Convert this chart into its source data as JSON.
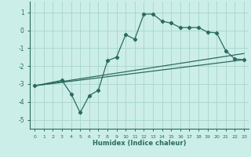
{
  "xlabel": "Humidex (Indice chaleur)",
  "bg_color": "#cceee8",
  "grid_color": "#aad8d0",
  "line_color": "#2a6b60",
  "xlim": [
    -0.5,
    23.5
  ],
  "ylim": [
    -5.5,
    1.6
  ],
  "yticks": [
    1,
    0,
    -1,
    -2,
    -3,
    -4,
    -5
  ],
  "xticks": [
    0,
    1,
    2,
    3,
    4,
    5,
    6,
    7,
    8,
    9,
    10,
    11,
    12,
    13,
    14,
    15,
    16,
    17,
    18,
    19,
    20,
    21,
    22,
    23
  ],
  "series1_x": [
    0,
    3,
    4,
    5,
    6,
    7,
    8,
    9,
    10,
    11,
    12,
    13,
    14,
    15,
    16,
    17,
    18,
    19,
    20,
    21,
    22,
    23
  ],
  "series1_y": [
    -3.1,
    -2.8,
    -3.55,
    -4.6,
    -3.65,
    -3.35,
    -1.7,
    -1.5,
    -0.25,
    -0.5,
    0.9,
    0.9,
    0.5,
    0.4,
    0.15,
    0.15,
    0.15,
    -0.1,
    -0.15,
    -1.15,
    -1.6,
    -1.65
  ],
  "series2_x": [
    0,
    23
  ],
  "series2_y": [
    -3.1,
    -1.65
  ],
  "series3_x": [
    0,
    23
  ],
  "series3_y": [
    -3.1,
    -1.3
  ]
}
